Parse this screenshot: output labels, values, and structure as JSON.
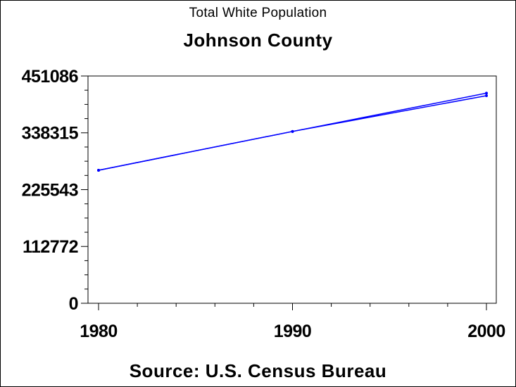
{
  "chart_data": {
    "type": "line",
    "title": "Johnson County",
    "subtitle": "Total White Population",
    "source": "Source: U.S. Census Bureau",
    "xlabel": "",
    "ylabel": "",
    "x": [
      1980,
      1990,
      2000
    ],
    "series": [
      {
        "values": [
          264000,
          341000,
          417000
        ],
        "color": "#0000ff"
      },
      {
        "values": [
          264000,
          341000,
          412000
        ],
        "color": "#0000ff"
      }
    ],
    "xlim": [
      1980,
      2000
    ],
    "ylim": [
      0,
      451086
    ],
    "x_ticks": [
      "1980",
      "1990",
      "2000"
    ],
    "y_ticks": [
      0,
      112772,
      225543,
      338315,
      451086
    ],
    "y_tick_labels": [
      "0",
      "112772",
      "225543",
      "338315",
      "451086"
    ],
    "grid": false,
    "legend": "none"
  }
}
